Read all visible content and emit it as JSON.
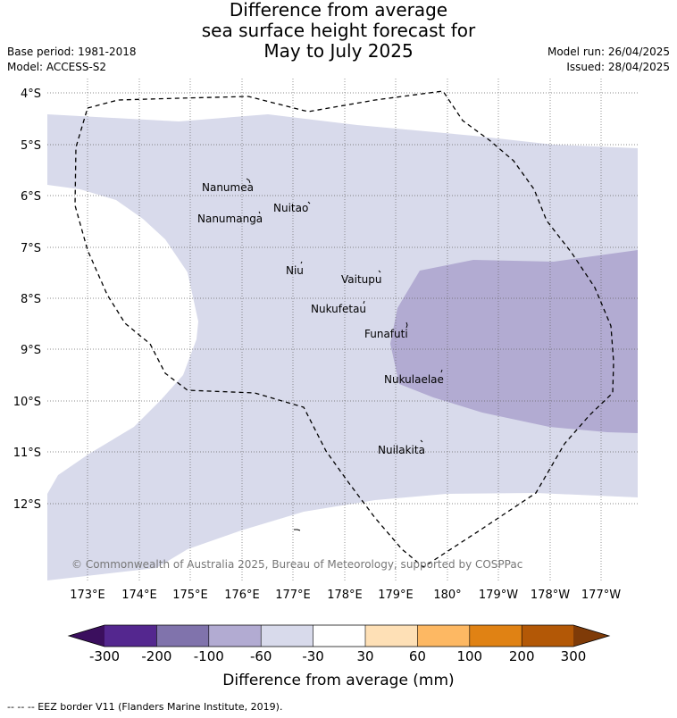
{
  "title_lines": [
    "Difference from average",
    "sea surface height forecast for",
    "May to July 2025"
  ],
  "base_period": "Base period: 1981-2018",
  "model": "Model: ACCESS-S2",
  "model_run": "Model run: 26/04/2025",
  "issued": "Issued: 28/04/2025",
  "lat_labels": [
    "4°S",
    "5°S",
    "6°S",
    "7°S",
    "8°S",
    "9°S",
    "10°S",
    "11°S",
    "12°S"
  ],
  "lon_labels": [
    "173°E",
    "174°E",
    "175°E",
    "176°E",
    "177°E",
    "178°E",
    "179°E",
    "180°",
    "179°W",
    "178°W",
    "177°W"
  ],
  "places": [
    {
      "name": "Nanumea"
    },
    {
      "name": "Nuitao"
    },
    {
      "name": "Nanumanga"
    },
    {
      "name": "Niu"
    },
    {
      "name": "Vaitupu"
    },
    {
      "name": "Nukufetau"
    },
    {
      "name": "Funafuti"
    },
    {
      "name": "Nukulaelae"
    },
    {
      "name": "Nuilakita"
    }
  ],
  "copyright": "© Commonwealth of Australia 2025, Bureau of Meteorology, supported by COSPPac",
  "colorbar": {
    "title": "Difference from average (mm)",
    "ticks": [
      "-300",
      "-200",
      "-100",
      "-60",
      "-30",
      "30",
      "60",
      "100",
      "200",
      "300"
    ],
    "colors": {
      "under": "#3b0f5e",
      "bins": [
        "#54278f",
        "#8073ac",
        "#b2abd2",
        "#d8daeb",
        "#ffffff",
        "#fee0b6",
        "#fdb863",
        "#e08214",
        "#b35806"
      ],
      "over": "#7f3b08"
    }
  },
  "footer": "--  --  -- EEZ border V11 (Flanders Marine Institute, 2019)."
}
